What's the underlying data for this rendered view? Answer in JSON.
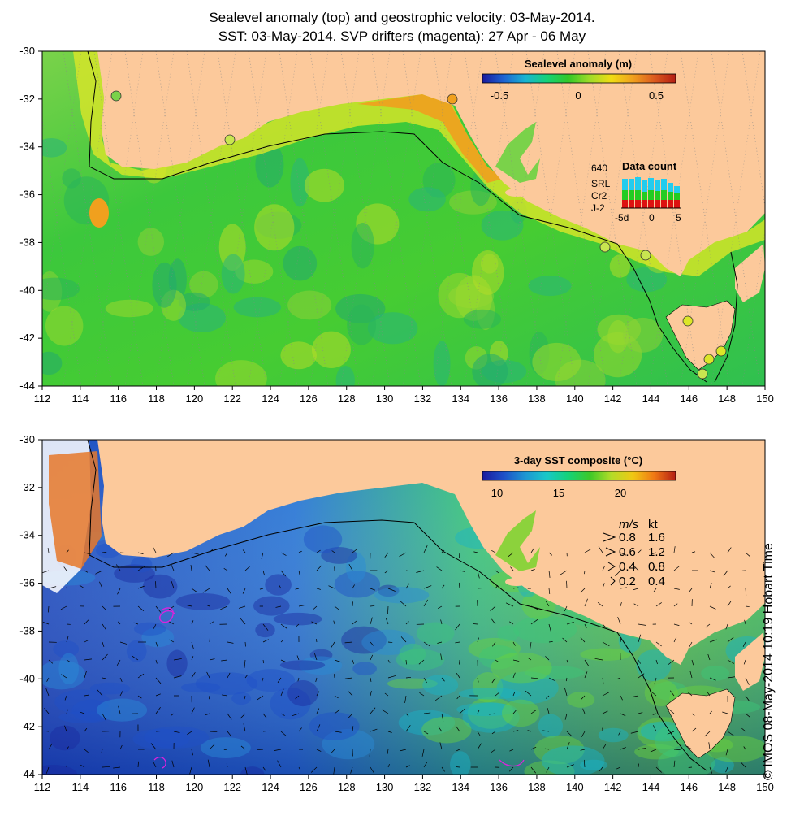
{
  "title_line1": "Sealevel anomaly (top) and geostrophic velocity: 03-May-2014.",
  "title_line2": "SST: 03-May-2014. SVP drifters (magenta): 27 Apr - 06 May",
  "x_ticks": [
    "112",
    "114",
    "116",
    "118",
    "120",
    "122",
    "124",
    "126",
    "128",
    "130",
    "132",
    "134",
    "136",
    "138",
    "140",
    "142",
    "144",
    "146",
    "148",
    "150"
  ],
  "y_ticks": [
    "-30",
    "-32",
    "-34",
    "-36",
    "-38",
    "-40",
    "-42",
    "-44"
  ],
  "top_panel": {
    "colorbar_title": "Sealevel anomaly (m)",
    "colorbar_ticks": [
      "-0.5",
      "0",
      "0.5"
    ],
    "colors": [
      "#1a1a9e",
      "#1e64d2",
      "#18b4d2",
      "#14d278",
      "#32c828",
      "#a0dc28",
      "#f0dc14",
      "#f0a01e",
      "#dc5a1e",
      "#b41e14"
    ],
    "data_count": {
      "max_label": "640",
      "title": "Data count",
      "sats": [
        {
          "name": "SRL",
          "color": "#22ccee"
        },
        {
          "name": "Cr2",
          "color": "#22cc22"
        },
        {
          "name": "J-2",
          "color": "#dd1111"
        }
      ],
      "x_labels": [
        "-5d",
        "0",
        "5"
      ]
    }
  },
  "bottom_panel": {
    "colorbar_title": "3-day SST composite (°C)",
    "colorbar_ticks": [
      "10",
      "15",
      "20"
    ],
    "colors": [
      "#1a1a9e",
      "#1e50c8",
      "#1e96d2",
      "#18c8c8",
      "#14d278",
      "#3cc828",
      "#b4dc28",
      "#f0c814",
      "#f07814",
      "#b41e14"
    ],
    "legend_units": [
      "m/s",
      "kt"
    ],
    "legend_rows": [
      {
        "ms": "0.8",
        "kt": "1.6"
      },
      {
        "ms": "0.6",
        "kt": "1.2"
      },
      {
        "ms": "0.4",
        "kt": "0.8"
      },
      {
        "ms": "0.2",
        "kt": "0.4"
      }
    ]
  },
  "side_label": "© IMOS 08-May-2014 10:19 Hobart Time",
  "land_color": "#fcc99b"
}
